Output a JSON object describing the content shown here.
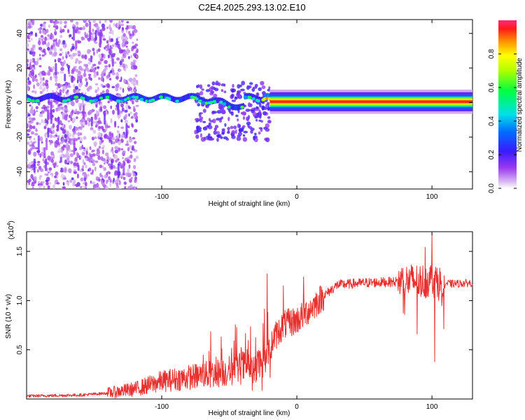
{
  "title": "C2E4.2025.293.13.02.E10",
  "chart_data": [
    {
      "type": "heatmap",
      "xlabel": "Height of straight line (km)",
      "ylabel": "Frequency (Hz)",
      "xlim": [
        -200,
        130
      ],
      "ylim": [
        -50,
        48
      ],
      "xticks": [
        -100,
        0,
        100
      ],
      "yticks": [
        -40,
        -20,
        0,
        20,
        40
      ],
      "colorbar": {
        "label": "Normalized spectral amplitude",
        "range": [
          0,
          1
        ],
        "ticks": [
          "0.0",
          "0.2",
          "0.4",
          "0.6",
          "0.8"
        ],
        "tick_values": [
          0,
          0.2,
          0.4,
          0.6,
          0.8
        ]
      },
      "features": [
        {
          "name": "scattered noise",
          "x_range": [
            -200,
            -120
          ],
          "freq_range": [
            -50,
            48
          ],
          "amplitude": 0.1
        },
        {
          "name": "carrier line",
          "x_range": [
            -200,
            -25
          ],
          "freq_center": 2,
          "amplitude": 0.4
        },
        {
          "name": "disturbed region",
          "x_range": [
            -70,
            -30
          ],
          "freq_range": [
            -20,
            10
          ],
          "amplitude": 0.3
        },
        {
          "name": "carrier line",
          "x_range": [
            -25,
            130
          ],
          "freq_center": 0.5,
          "amplitude": 0.97
        }
      ]
    },
    {
      "type": "line",
      "xlabel": "Height of straight line (km)",
      "ylabel": "SNR (10 * v/v)",
      "multiplier_label": "(x10",
      "multiplier_exp": "4",
      "multiplier_close": ")",
      "xlim": [
        -200,
        130
      ],
      "ylim": [
        0,
        17000
      ],
      "xticks": [
        -100,
        0,
        100
      ],
      "yticks": [
        5000,
        10000,
        15000
      ],
      "ytick_labels": [
        "0.5",
        "1.0",
        "1.5"
      ],
      "color": "#e8302f",
      "series": [
        {
          "name": "SNR",
          "x": [
            -200,
            -160,
            -140,
            -120,
            -100,
            -80,
            -60,
            -45,
            -35,
            -25,
            -18,
            -10,
            0,
            10,
            20,
            30,
            50,
            70,
            85,
            95,
            100,
            105,
            115,
            130
          ],
          "values": [
            300,
            400,
            600,
            1000,
            1800,
            2200,
            2600,
            3000,
            3400,
            3600,
            6000,
            7500,
            8000,
            9200,
            10500,
            11600,
            11800,
            11900,
            12000,
            12000,
            12200,
            11800,
            11700,
            11800
          ]
        }
      ],
      "spikes": [
        {
          "x": -22,
          "value": 12700
        },
        {
          "x": -10,
          "value": 11500
        },
        {
          "x": 5,
          "value": 12400
        },
        {
          "x": 95,
          "value": 15400
        },
        {
          "x": 100,
          "value": 16800
        },
        {
          "x": 102,
          "value": 3800
        },
        {
          "x": 89,
          "value": 6600
        }
      ]
    }
  ]
}
